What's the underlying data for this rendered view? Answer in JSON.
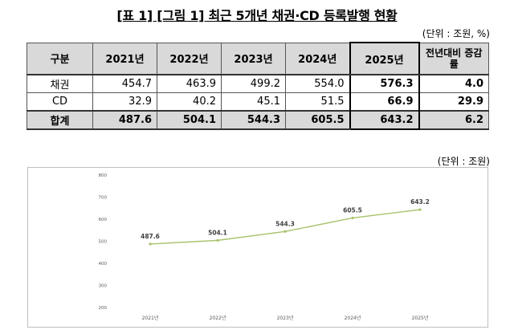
{
  "title": "[표 1] [그림 1] 최근 5개년 채권·CD 등록발행 현황",
  "table": {
    "unit": "(단위 : 조원, %)",
    "headers": [
      "구분",
      "2021년",
      "2022년",
      "2023년",
      "2024년",
      "2025년",
      "전년대비 증감률"
    ],
    "rows": [
      {
        "label": "채권",
        "values": [
          "454.7",
          "463.9",
          "499.2",
          "554.0",
          "576.3",
          "4.0"
        ]
      },
      {
        "label": "CD",
        "values": [
          "32.9",
          "40.2",
          "45.1",
          "51.5",
          "66.9",
          "29.9"
        ]
      },
      {
        "label": "합계",
        "values": [
          "487.6",
          "504.1",
          "544.3",
          "605.5",
          "643.2",
          "6.2"
        ]
      }
    ]
  },
  "chart_data": {
    "type": "line",
    "unit": "(단위 : 조원)",
    "categories": [
      "2021년",
      "2022년",
      "2023년",
      "2024년",
      "2025년"
    ],
    "values": [
      487.6,
      504.1,
      544.3,
      605.5,
      643.2
    ],
    "data_labels": [
      "487.6",
      "504.1",
      "544.3",
      "605.5",
      "643.2"
    ],
    "ylim": [
      200,
      800
    ],
    "yticks": [
      "200",
      "300",
      "400",
      "500",
      "600",
      "700",
      "800"
    ],
    "grid": false,
    "color": "#a9c26b"
  }
}
